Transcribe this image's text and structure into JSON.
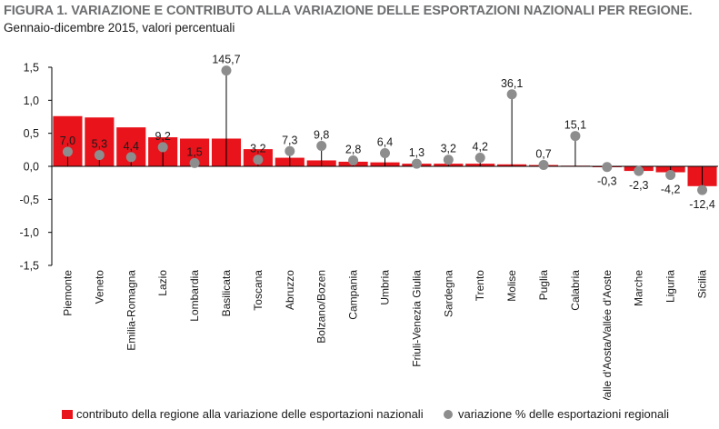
{
  "header": {
    "title": "FIGURA 1. VARIAZIONE E CONTRIBUTO ALLA VARIAZIONE DELLE ESPORTAZIONI NAZIONALI PER REGIONE.",
    "subtitle": "Gennaio-dicembre 2015, valori percentuali"
  },
  "colors": {
    "bar": "#e8131b",
    "dot": "#8d8d8d",
    "title": "#6d6e70"
  },
  "chart_data": {
    "type": "bar",
    "categories": [
      "Piemonte",
      "Veneto",
      "Emilia-Romagna",
      "Lazio",
      "Lombardia",
      "Basilicata",
      "Toscana",
      "Abruzzo",
      "Bolzano/Bozen",
      "Campania",
      "Umbria",
      "Friuli-Venezia Giulia",
      "Sardegna",
      "Trento",
      "Molise",
      "Puglia",
      "Calabria",
      "Valle d'Aosta/Vallée d'Aoste",
      "Marche",
      "Liguria",
      "Sicilia"
    ],
    "ylim": [
      -1.5,
      1.5
    ],
    "yticks": [
      "-1,5",
      "-1,0",
      "-0,5",
      "0,0",
      "0,5",
      "1,0",
      "1,5"
    ],
    "series": [
      {
        "name": "contributo della regione alla variazione delle esportazioni nazionali",
        "type": "bar",
        "values": [
          0.76,
          0.74,
          0.59,
          0.44,
          0.42,
          0.42,
          0.26,
          0.13,
          0.09,
          0.07,
          0.06,
          0.04,
          0.04,
          0.04,
          0.03,
          0.02,
          0.01,
          -0.005,
          -0.07,
          -0.09,
          -0.3
        ]
      },
      {
        "name": "variazione % delle esportazioni regionali",
        "type": "scatter",
        "labels": [
          "7,0",
          "5,3",
          "4,4",
          "9,2",
          "1,5",
          "145,7",
          "3,2",
          "7,3",
          "9,8",
          "2,8",
          "6,4",
          "1,3",
          "3,2",
          "4,2",
          "36,1",
          "0,7",
          "15,1",
          "-0,3",
          "-2,3",
          "-4,2",
          "-12,4"
        ],
        "plotted_y": [
          0.22,
          0.17,
          0.14,
          0.29,
          0.05,
          1.45,
          0.1,
          0.23,
          0.31,
          0.09,
          0.2,
          0.04,
          0.1,
          0.13,
          1.09,
          0.02,
          0.46,
          -0.01,
          -0.07,
          -0.13,
          -0.36
        ]
      }
    ],
    "legend": [
      {
        "marker": "rect",
        "label": "contributo della regione alla variazione delle esportazioni nazionali"
      },
      {
        "marker": "dot",
        "label": "variazione % delle esportazioni regionali"
      }
    ],
    "legend_position": "bottom"
  }
}
